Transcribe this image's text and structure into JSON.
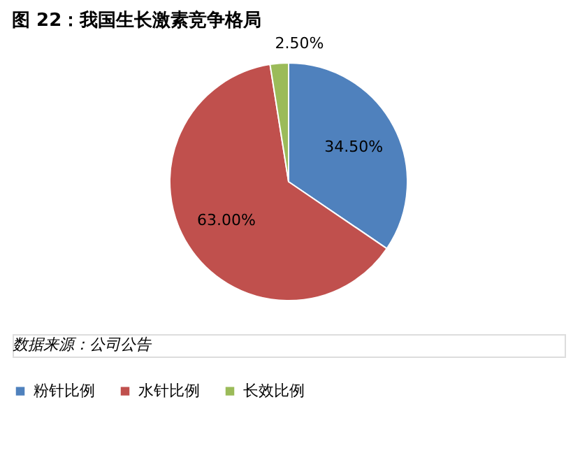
{
  "chart_data": {
    "type": "pie",
    "title": "图 22：我国生长激素竞争格局",
    "categories": [
      "粉针比例",
      "水针比例",
      "长效比例"
    ],
    "values": [
      34.5,
      63.0,
      2.5
    ],
    "colors": [
      "#4f81bd",
      "#c0504d",
      "#9bbb59"
    ],
    "value_labels": [
      "34.50%",
      "63.00%",
      "2.50%"
    ],
    "legend": "bottom",
    "annotations": [
      "数据来源：公司公告"
    ]
  }
}
